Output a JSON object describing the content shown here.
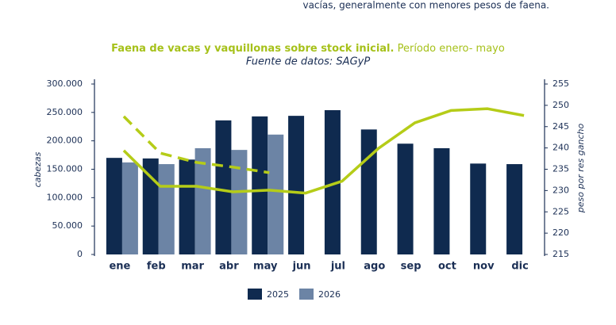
{
  "context_text": "vacías, generalmente con menores pesos de faena.",
  "chart_data": {
    "type": "bar",
    "title": "Faena de vacas y vaquillonas sobre stock inicial.",
    "title_suffix": "Período enero- mayo",
    "subtitle": "Fuente de datos: SAGyP",
    "y_label": "cabezas",
    "y2_label": "peso por res gancho",
    "categories": [
      "ene",
      "feb",
      "mar",
      "abr",
      "may",
      "jun",
      "jul",
      "ago",
      "sep",
      "oct",
      "nov",
      "dic"
    ],
    "series": [
      {
        "name": "2025",
        "color": "#0f2a4f",
        "values": [
          170000,
          169000,
          167000,
          236000,
          243000,
          244000,
          254000,
          220000,
          195000,
          187000,
          160000,
          159000
        ]
      },
      {
        "name": "2026",
        "color": "#6c84a5",
        "values": [
          162000,
          159000,
          187000,
          184000,
          211000,
          null,
          null,
          null,
          null,
          null,
          null,
          null
        ]
      },
      {
        "type": "line",
        "axis": "y2",
        "color": "#b5cc18",
        "dash": false,
        "values": [
          239.4,
          231.0,
          231.0,
          229.7,
          230.1,
          229.4,
          232.2,
          239.9,
          245.9,
          248.8,
          249.2,
          247.6
        ]
      },
      {
        "type": "line",
        "axis": "y2",
        "color": "#b5cc18",
        "dash": true,
        "values": [
          247.4,
          238.8,
          236.6,
          235.5,
          234.2,
          null,
          null,
          null,
          null,
          null,
          null,
          null
        ]
      }
    ],
    "ylim": [
      0,
      300000
    ],
    "yticks": [
      {
        "value": 0,
        "label": "0"
      },
      {
        "value": 50000,
        "label": "50.000"
      },
      {
        "value": 100000,
        "label": "100.000"
      },
      {
        "value": 150000,
        "label": "150.000"
      },
      {
        "value": 200000,
        "label": "200.000"
      },
      {
        "value": 250000,
        "label": "250.000"
      },
      {
        "value": 300000,
        "label": "300.000"
      }
    ],
    "y2lim": [
      215,
      255
    ],
    "y2ticks": [
      215,
      220,
      225,
      230,
      235,
      240,
      245,
      250,
      255
    ],
    "legend": "bottom"
  }
}
